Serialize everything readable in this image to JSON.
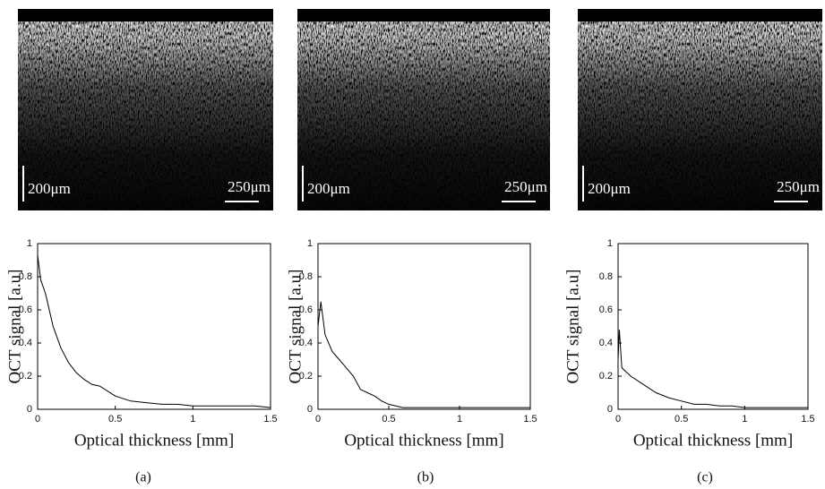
{
  "chart_data": [
    {
      "type": "line",
      "panel_label": "(a)",
      "scale_bar_labels": [
        "200μm",
        "250μm"
      ],
      "xlabel": "Optical thickness [mm]",
      "ylabel": "OCT signal [a.u]",
      "xlim": [
        0,
        1.5
      ],
      "ylim": [
        0,
        1
      ],
      "xticks": [
        0,
        0.5,
        1,
        1.5
      ],
      "yticks": [
        0,
        0.2,
        0.4,
        0.6,
        0.8,
        1
      ],
      "color": "#000000",
      "x": [
        0,
        0.02,
        0.05,
        0.1,
        0.15,
        0.2,
        0.25,
        0.3,
        0.35,
        0.4,
        0.45,
        0.5,
        0.6,
        0.7,
        0.8,
        0.9,
        1.0,
        1.2,
        1.4,
        1.5
      ],
      "values": [
        0.93,
        0.78,
        0.7,
        0.5,
        0.37,
        0.28,
        0.22,
        0.18,
        0.15,
        0.14,
        0.11,
        0.08,
        0.05,
        0.04,
        0.03,
        0.03,
        0.02,
        0.02,
        0.02,
        0.01
      ]
    },
    {
      "type": "line",
      "panel_label": "(b)",
      "scale_bar_labels": [
        "200μm",
        "250μm"
      ],
      "xlabel": "Optical thickness [mm]",
      "ylabel": "OCT signal [a.u]",
      "xlim": [
        0,
        1.5
      ],
      "ylim": [
        0,
        1
      ],
      "xticks": [
        0,
        0.5,
        1,
        1.5
      ],
      "yticks": [
        0,
        0.2,
        0.4,
        0.6,
        0.8,
        1
      ],
      "color": "#000000",
      "x": [
        0,
        0.02,
        0.05,
        0.1,
        0.15,
        0.2,
        0.25,
        0.3,
        0.35,
        0.4,
        0.45,
        0.5,
        0.6,
        0.7,
        0.8,
        1.0,
        1.2,
        1.5
      ],
      "values": [
        0.5,
        0.65,
        0.45,
        0.35,
        0.3,
        0.25,
        0.2,
        0.12,
        0.1,
        0.08,
        0.05,
        0.03,
        0.01,
        0.01,
        0.01,
        0.01,
        0.01,
        0.01
      ]
    },
    {
      "type": "line",
      "panel_label": "(c)",
      "scale_bar_labels": [
        "200μm",
        "250μm"
      ],
      "xlabel": "Optical thickness [mm]",
      "ylabel": "OCT signal [a.u]",
      "xlim": [
        0,
        1.5
      ],
      "ylim": [
        0,
        1
      ],
      "xticks": [
        0,
        0.5,
        1,
        1.5
      ],
      "yticks": [
        0,
        0.2,
        0.4,
        0.6,
        0.8,
        1
      ],
      "color": "#000000",
      "x": [
        0,
        0.01,
        0.03,
        0.1,
        0.2,
        0.3,
        0.4,
        0.5,
        0.6,
        0.7,
        0.8,
        0.9,
        1.0,
        1.2,
        1.5
      ],
      "values": [
        0.3,
        0.48,
        0.25,
        0.2,
        0.15,
        0.1,
        0.07,
        0.05,
        0.03,
        0.03,
        0.02,
        0.02,
        0.01,
        0.01,
        0.01
      ]
    }
  ]
}
